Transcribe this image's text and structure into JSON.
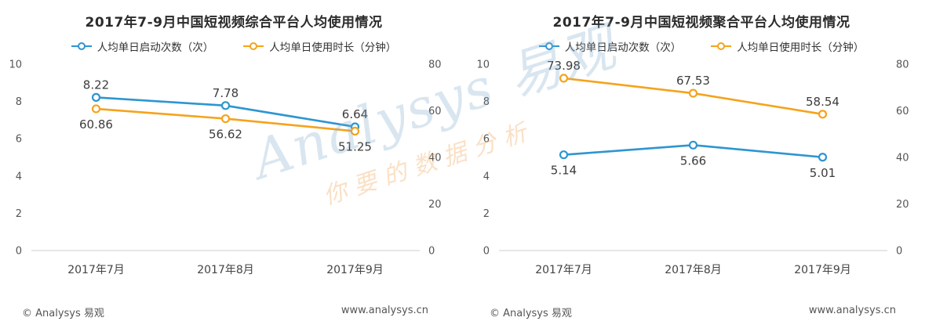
{
  "chart_data": [
    {
      "type": "line",
      "title": "2017年7-9月中国短视频综合平台人均使用情况",
      "categories": [
        "2017年7月",
        "2017年8月",
        "2017年9月"
      ],
      "series": [
        {
          "name": "人均单日启动次数（次）",
          "axis": "left",
          "color": "#2e95d1",
          "label_position": "above",
          "values": [
            8.22,
            7.78,
            6.64
          ]
        },
        {
          "name": "人均单日使用时长（分钟）",
          "axis": "right",
          "color": "#f5a31c",
          "label_position": "below",
          "values": [
            60.86,
            56.62,
            51.25
          ]
        }
      ],
      "left_axis": {
        "min": 0,
        "max": 10,
        "ticks": [
          0,
          2,
          4,
          6,
          8,
          10
        ]
      },
      "right_axis": {
        "min": 0,
        "max": 80,
        "ticks": [
          0,
          20,
          40,
          60,
          80
        ]
      },
      "legend_position": "top",
      "grid": false
    },
    {
      "type": "line",
      "title": "2017年7-9月中国短视频聚合平台人均使用情况",
      "categories": [
        "2017年7月",
        "2017年8月",
        "2017年9月"
      ],
      "series": [
        {
          "name": "人均单日启动次数（次）",
          "axis": "left",
          "color": "#2e95d1",
          "label_position": "below",
          "values": [
            5.14,
            5.66,
            5.01
          ]
        },
        {
          "name": "人均单日使用时长（分钟）",
          "axis": "right",
          "color": "#f5a31c",
          "label_position": "above",
          "values": [
            73.98,
            67.53,
            58.54
          ]
        }
      ],
      "left_axis": {
        "min": 0,
        "max": 10,
        "ticks": [
          0,
          2,
          4,
          6,
          8,
          10
        ]
      },
      "right_axis": {
        "min": 0,
        "max": 80,
        "ticks": [
          0,
          20,
          40,
          60,
          80
        ]
      },
      "legend_position": "top",
      "grid": false
    }
  ],
  "footer": {
    "left": "© Analysys 易观",
    "right": "www.analysys.cn"
  },
  "watermark": {
    "line1": "Analysys 易观",
    "line2": "你要的数据分析"
  },
  "colors": {
    "launches_blue": "#2e95d1",
    "duration_orange": "#f5a31c",
    "axis_line": "#cccccc"
  }
}
